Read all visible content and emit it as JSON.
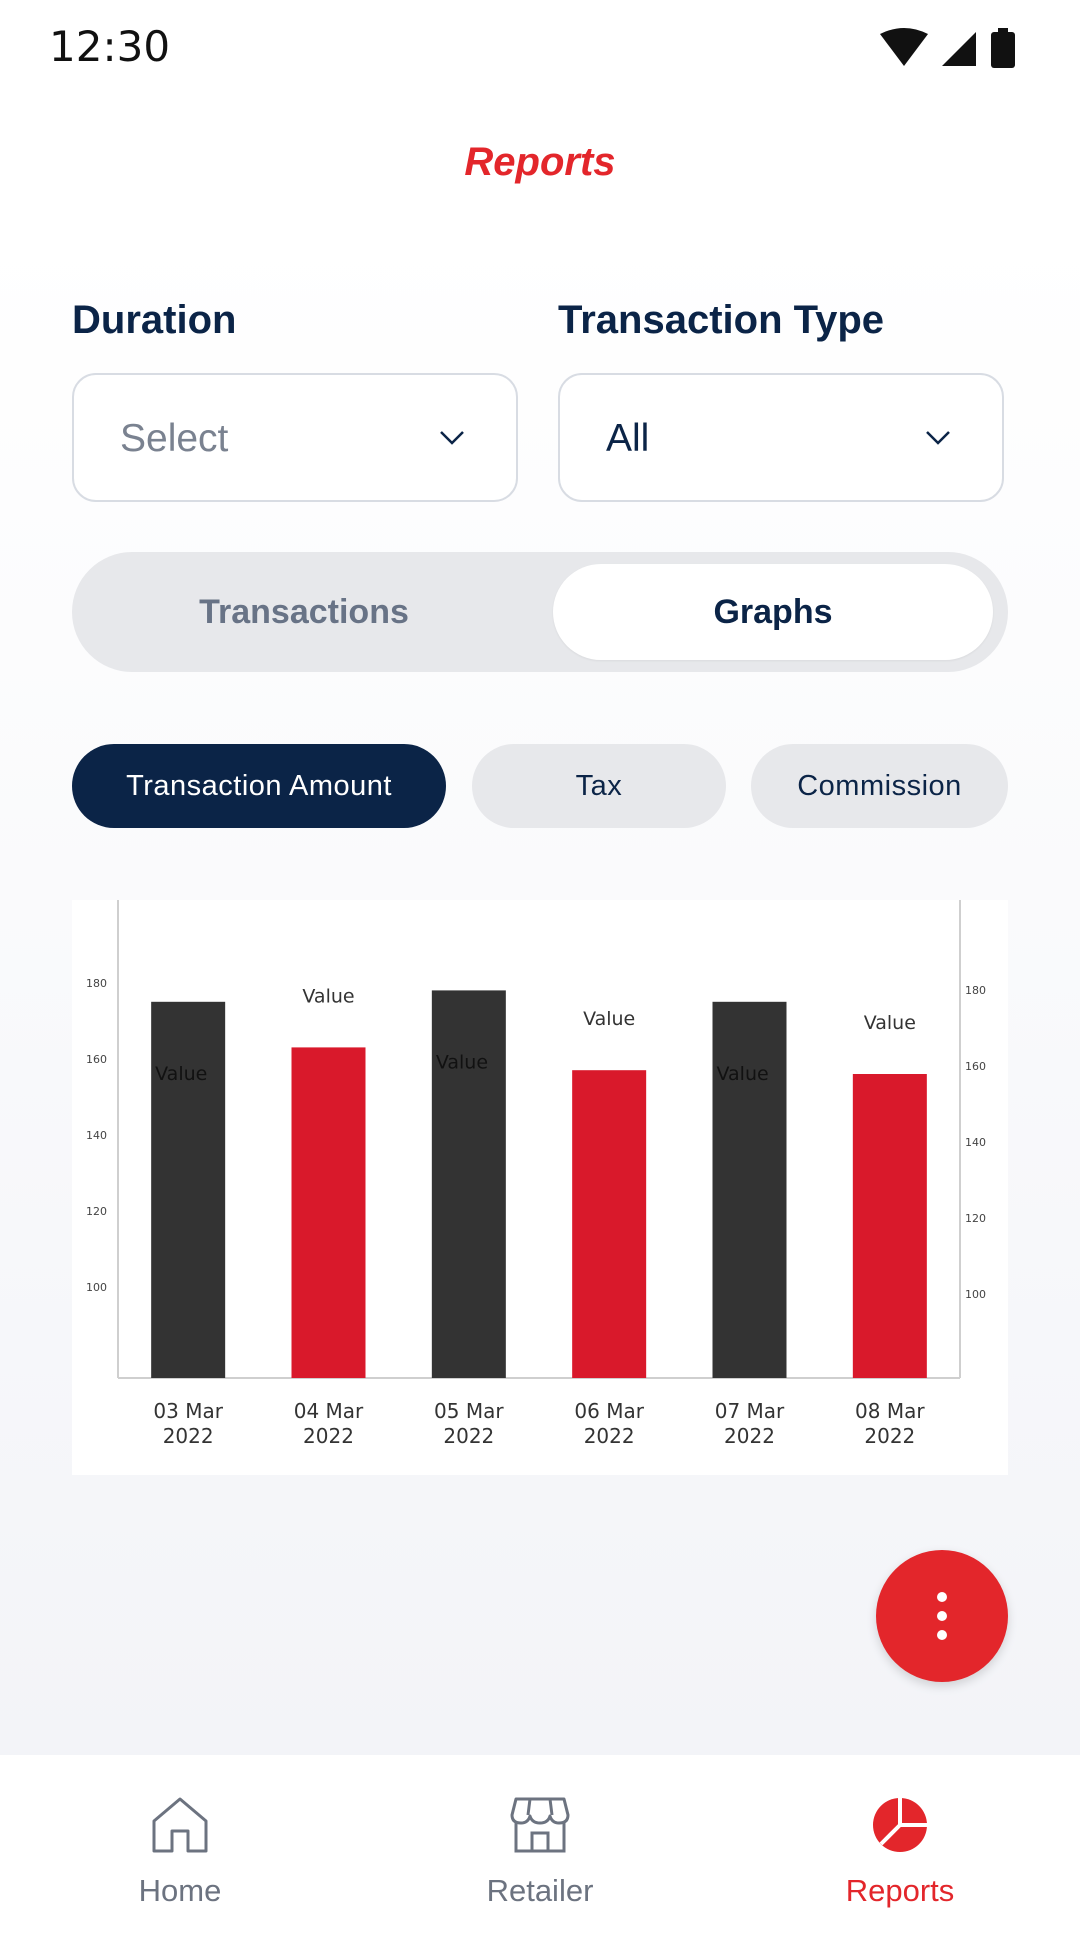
{
  "status_bar": {
    "time": "12:30",
    "icons": [
      "wifi-icon",
      "signal-icon",
      "battery-icon"
    ]
  },
  "header": {
    "title": "Reports"
  },
  "filters": {
    "duration": {
      "label": "Duration",
      "value": "Select"
    },
    "transaction_type": {
      "label": "Transaction Type",
      "value": "All"
    }
  },
  "view_toggle": {
    "options": [
      "Transactions",
      "Graphs"
    ],
    "selected": "Graphs"
  },
  "metric_chips": {
    "items": [
      "Transaction Amount",
      "Tax",
      "Commission"
    ],
    "selected": "Transaction Amount"
  },
  "chart_data": {
    "type": "bar",
    "categories": [
      "03 Mar\n2022",
      "04 Mar\n2022",
      "05 Mar\n2022",
      "06 Mar\n2022",
      "07 Mar\n2022",
      "08 Mar\n2022"
    ],
    "values": [
      175,
      163,
      178,
      157,
      175,
      156
    ],
    "data_labels": [
      "Value",
      "Value",
      "Value",
      "Value",
      "Value",
      "Value"
    ],
    "y_ticks_left": [
      "180",
      "160",
      "140",
      "120",
      "100"
    ],
    "y_ticks_right": [
      "180",
      "160",
      "140",
      "120",
      "100"
    ],
    "ylim": [
      76,
      186
    ],
    "grid": false,
    "colors": [
      "#333333",
      "#d9192b"
    ]
  },
  "fab": {
    "icon": "more-vertical-icon"
  },
  "bottom_nav": {
    "items": [
      {
        "label": "Home",
        "icon": "home-icon"
      },
      {
        "label": "Retailer",
        "icon": "store-icon"
      },
      {
        "label": "Reports",
        "icon": "pie-chart-icon"
      }
    ],
    "active": "Reports"
  },
  "colors": {
    "accent": "#e3262b",
    "navy": "#0b2447",
    "chip_bg": "#e7e8eb",
    "muted": "#687386"
  }
}
